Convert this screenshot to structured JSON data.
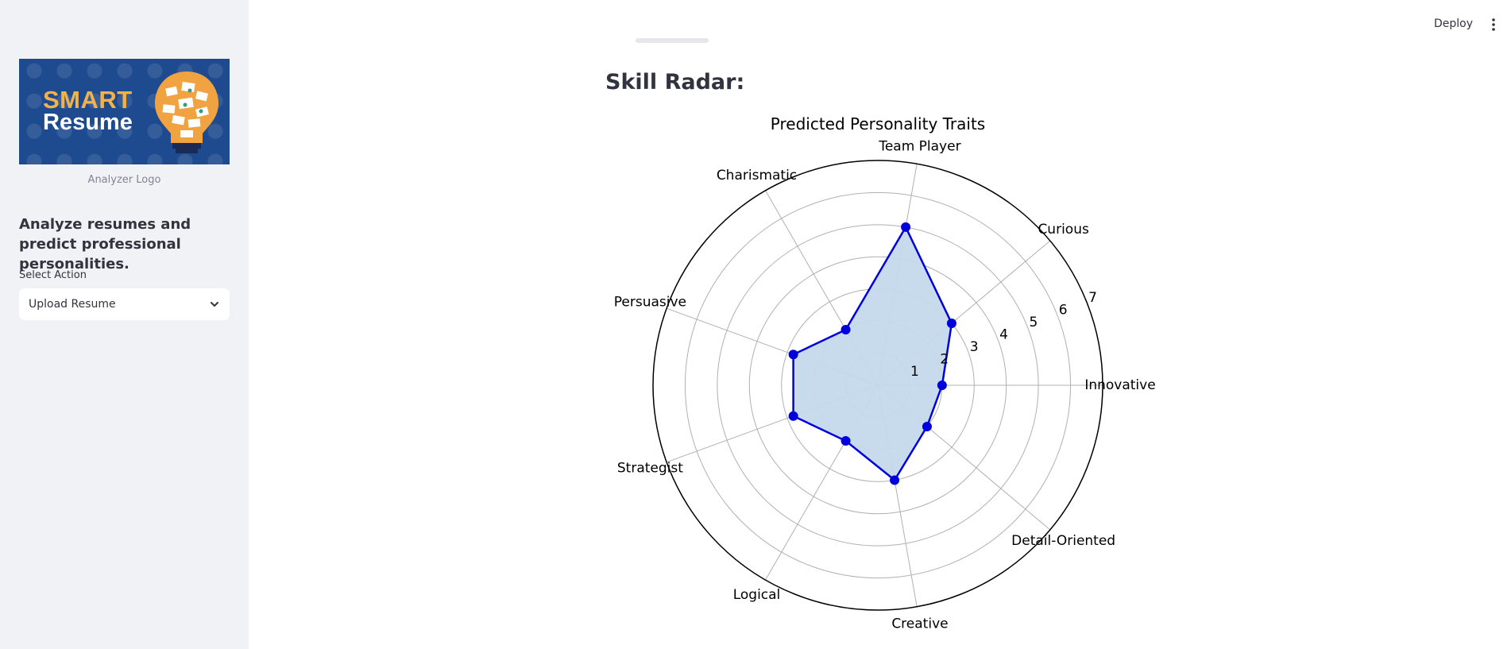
{
  "sidebar": {
    "logo": {
      "line1": "SMART",
      "line2": "Resume"
    },
    "logo_caption": "Analyzer Logo",
    "tagline": "Analyze resumes and predict professional personalities.",
    "select": {
      "label": "Select Action",
      "value": "Upload Resume"
    }
  },
  "header": {
    "deploy_label": "Deploy",
    "menu_icon": "more-vertical-icon"
  },
  "main": {
    "heading": "Skill Radar:"
  },
  "colors": {
    "series": "#0000dd",
    "fill": "#c5d9ec",
    "grid": "#b0b0b0",
    "sidebar_bg": "#f0f2f6"
  },
  "chart_data": {
    "type": "radar",
    "title": "Predicted Personality Traits",
    "categories": [
      "Innovative",
      "Curious",
      "Team Player",
      "Charismatic",
      "Persuasive",
      "Strategist",
      "Logical",
      "Creative",
      "Detail-Oriented"
    ],
    "values": [
      2.0,
      3.0,
      5.0,
      2.0,
      2.8,
      2.8,
      2.0,
      3.0,
      2.0
    ],
    "r_ticks": [
      "1",
      "2",
      "3",
      "4",
      "5",
      "6",
      "7"
    ],
    "rlim": [
      0,
      7
    ],
    "grid": true
  }
}
